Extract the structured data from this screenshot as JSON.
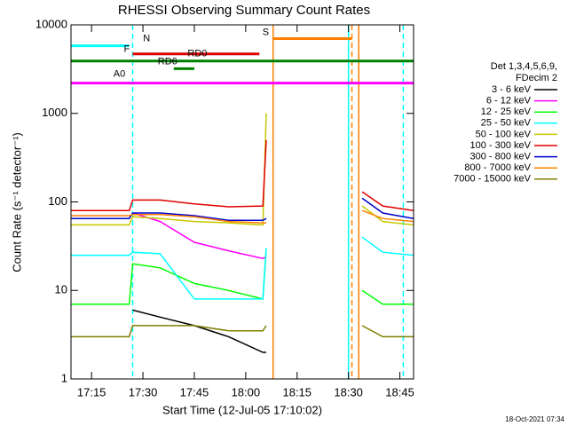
{
  "chart_data": {
    "type": "line",
    "title": "RHESSI Observing Summary Count Rates",
    "x_label": "Start Time (12-Jul-05 17:10:02)",
    "y_label": "Count Rate (s⁻¹ detector⁻¹)",
    "footer": "18-Oct-2021 07:34",
    "legend_title": [
      "Det 1,3,4,5,6,9,",
      "FDecim 2"
    ],
    "log_y": true,
    "xlim": [
      "17:09",
      "18:49"
    ],
    "xticks": [
      "17:15",
      "17:30",
      "17:45",
      "18:00",
      "18:15",
      "18:30",
      "18:45"
    ],
    "ylim": [
      1,
      10000
    ],
    "yticks": [
      1,
      10,
      100,
      1000,
      10000
    ],
    "x": [
      "17:09",
      "17:26",
      "17:27",
      "17:35",
      "17:45",
      "17:55",
      "18:05",
      "18:06",
      "18:20",
      "18:34",
      "18:40",
      "18:49"
    ],
    "series": [
      {
        "name": "3 - 6 keV",
        "color": "#000000",
        "values": [
          null,
          null,
          6,
          5,
          4,
          3,
          2,
          2,
          null,
          null,
          null,
          null
        ]
      },
      {
        "name": "6 - 12 keV",
        "color": "#ff00ff",
        "values": [
          null,
          null,
          75,
          60,
          35,
          28,
          23,
          24,
          null,
          null,
          null,
          null
        ]
      },
      {
        "name": "12 - 25 keV",
        "color": "#00ff00",
        "values": [
          7,
          7,
          20,
          18,
          12,
          10,
          8,
          30,
          null,
          10,
          7,
          7
        ]
      },
      {
        "name": "25 - 50 keV",
        "color": "#00ffff",
        "values": [
          25,
          25,
          27,
          26,
          8,
          8,
          8,
          30,
          null,
          40,
          27,
          25
        ]
      },
      {
        "name": "50 - 100 keV",
        "color": "#c8c800",
        "values": [
          55,
          55,
          68,
          65,
          60,
          58,
          55,
          1000,
          null,
          90,
          60,
          55
        ]
      },
      {
        "name": "100 - 300 keV",
        "color": "#e00000",
        "values": [
          80,
          80,
          105,
          105,
          95,
          88,
          90,
          500,
          null,
          130,
          90,
          80
        ]
      },
      {
        "name": "300 - 800 keV",
        "color": "#0000cc",
        "values": [
          65,
          65,
          75,
          75,
          70,
          62,
          62,
          65,
          null,
          110,
          75,
          65
        ]
      },
      {
        "name": "800 - 7000 keV",
        "color": "#ff8000",
        "values": [
          70,
          70,
          72,
          72,
          68,
          60,
          58,
          58,
          null,
          80,
          65,
          60
        ]
      },
      {
        "name": "7000 - 15000 keV",
        "color": "#808000",
        "values": [
          3,
          3,
          4,
          4,
          4,
          3.5,
          3.5,
          4,
          null,
          4,
          3,
          3
        ]
      }
    ],
    "annotations": [
      {
        "label": "N",
        "color": "#00ffff",
        "start": "17:09",
        "end": "17:26",
        "value": 5800
      },
      {
        "label": "F",
        "color": "#e00000",
        "start": "17:27",
        "end": "18:04",
        "value": 4700
      },
      {
        "label": "S",
        "color": "#ff8000",
        "start": "18:08",
        "end": "18:31",
        "value": 7000
      },
      {
        "label": "RD6",
        "color": "#008000",
        "start": "17:39",
        "end": "17:45",
        "value": 3200
      },
      {
        "label": "RD0",
        "color": "#008000",
        "start": "17:09",
        "end": "18:49",
        "value": 3900
      },
      {
        "label": "A0",
        "color": "#ff00ff",
        "start": "17:09",
        "end": "18:49",
        "value": 2200
      }
    ],
    "vlines": [
      {
        "t": "17:27",
        "color": "#00ffff",
        "dashed": true
      },
      {
        "t": "18:08",
        "color": "#ff8000",
        "dashed": false
      },
      {
        "t": "18:30",
        "color": "#00ffff",
        "dashed": false
      },
      {
        "t": "18:31",
        "color": "#ff8000",
        "dashed": true
      },
      {
        "t": "18:33",
        "color": "#ff8000",
        "dashed": false
      },
      {
        "t": "18:46",
        "color": "#00ffff",
        "dashed": true
      }
    ]
  }
}
